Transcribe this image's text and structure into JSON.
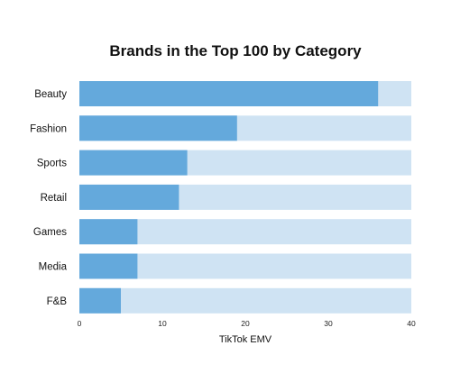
{
  "chart_data": {
    "type": "bar",
    "orientation": "horizontal",
    "title": "Brands in the Top 100 by Category",
    "xlabel": "TikTok EMV",
    "ylabel": "",
    "categories": [
      "Beauty",
      "Fashion",
      "Sports",
      "Retail",
      "Games",
      "Media",
      "F&B"
    ],
    "values": [
      36,
      19,
      13,
      12,
      7,
      7,
      5
    ],
    "xlim": [
      0,
      40
    ],
    "xticks": [
      0,
      10,
      20,
      30,
      40
    ],
    "background_track_max": 40,
    "grid": false,
    "legend": "none",
    "colors": {
      "bar": "#64a9dc",
      "track": "#cfe3f3",
      "text": "#111111"
    }
  }
}
